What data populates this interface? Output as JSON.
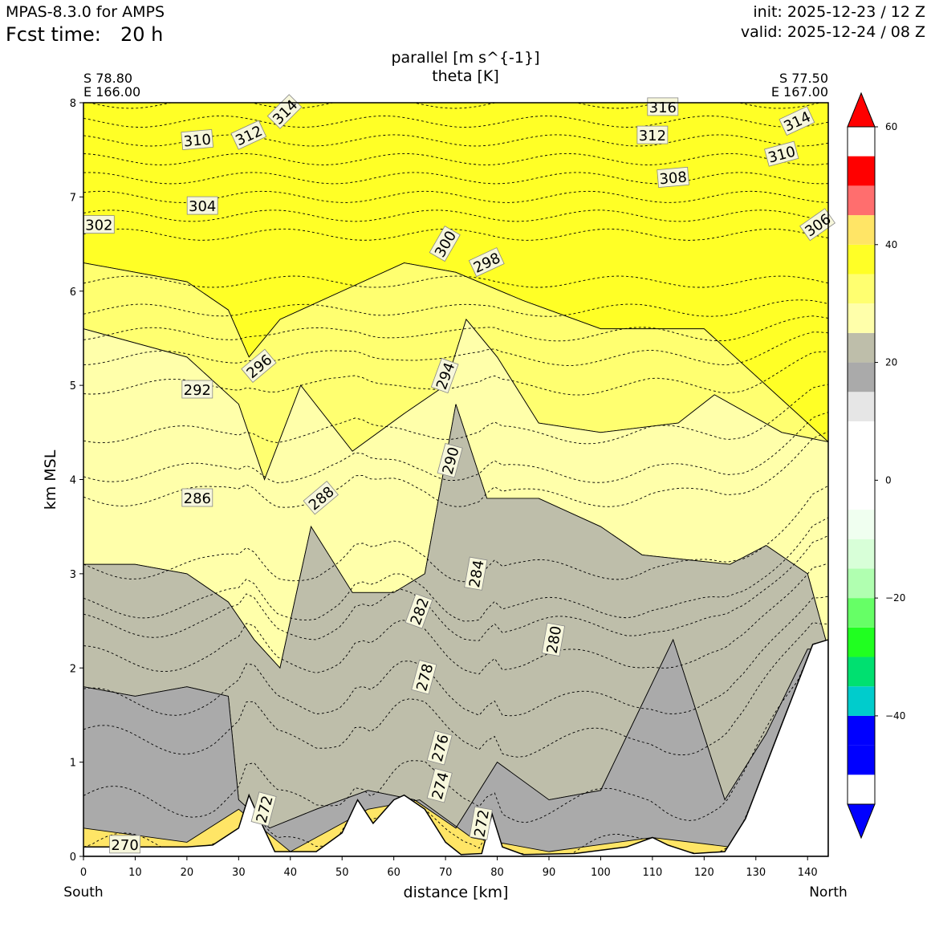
{
  "header": {
    "model": "MPAS-8.3.0 for AMPS",
    "fcst_label": "Fcst time:",
    "fcst_value": "20 h",
    "init": "init: 2025-12-23 / 12 Z",
    "valid": "valid: 2025-12-24 / 08 Z"
  },
  "chart_data": {
    "type": "contour",
    "title": "parallel [m s^{-1}]",
    "subtitle": "theta [K]",
    "xlabel": "distance [km]",
    "ylabel": "km MSL",
    "xlim": [
      0,
      144
    ],
    "ylim": [
      0,
      8
    ],
    "xticks": [
      0,
      10,
      20,
      30,
      40,
      50,
      60,
      70,
      80,
      90,
      100,
      110,
      120,
      130,
      140
    ],
    "yticks": [
      0,
      1,
      2,
      3,
      4,
      5,
      6,
      7,
      8
    ],
    "start_point": {
      "lat": "S 78.80",
      "lon": "E 166.00",
      "direction": "South"
    },
    "end_point": {
      "lat": "S 77.50",
      "lon": "E 167.00",
      "direction": "North"
    },
    "colorbar": {
      "levels": [
        -55,
        -50,
        -45,
        -40,
        -35,
        -30,
        -25,
        -20,
        -15,
        -10,
        -5,
        0,
        5,
        10,
        15,
        20,
        25,
        30,
        35,
        40,
        45,
        50,
        55,
        60
      ],
      "colors": [
        "#0000ff",
        "#0000ff",
        "#00cccc",
        "#00e070",
        "#20ff20",
        "#66ff66",
        "#b0ffb0",
        "#d8ffd8",
        "#f0fff0",
        "#ffffff",
        "#ffffff",
        "#ffffff",
        "#e6e6e6",
        "#aaaaaa",
        "#bebeaa",
        "#ffffaa",
        "#ffff70",
        "#ffff26",
        "#ffe566",
        "#ff6e6e",
        "#ff0000"
      ],
      "ticks": [
        -40,
        -20,
        0,
        20,
        40,
        60
      ],
      "tick_labels": [
        "−40",
        "−20",
        "0",
        "20",
        "40",
        "60"
      ],
      "extend": "both"
    },
    "parallel_wind_fill": {
      "bands": [
        {
          "value_range": [
            30,
            35
          ],
          "color": "#ffff26",
          "boundary_top": [
            [
              0,
              8
            ],
            [
              144,
              8
            ]
          ],
          "boundary_bottom": [
            [
              0,
              6.3
            ],
            [
              20,
              6.1
            ],
            [
              28,
              5.8
            ],
            [
              32,
              5.3
            ],
            [
              38,
              5.7
            ],
            [
              50,
              6.0
            ],
            [
              62,
              6.3
            ],
            [
              72,
              6.2
            ],
            [
              85,
              5.9
            ],
            [
              100,
              5.6
            ],
            [
              120,
              5.6
            ],
            [
              140,
              4.6
            ],
            [
              144,
              4.4
            ]
          ]
        },
        {
          "value_range": [
            25,
            30
          ],
          "color": "#ffff70",
          "boundary_top": [
            [
              0,
              6.3
            ],
            [
              20,
              6.1
            ],
            [
              28,
              5.8
            ],
            [
              32,
              5.3
            ],
            [
              38,
              5.7
            ],
            [
              50,
              6.0
            ],
            [
              62,
              6.3
            ],
            [
              72,
              6.2
            ],
            [
              85,
              5.9
            ],
            [
              100,
              5.6
            ],
            [
              120,
              5.6
            ],
            [
              140,
              4.6
            ],
            [
              144,
              4.4
            ]
          ],
          "boundary_bottom": [
            [
              0,
              5.6
            ],
            [
              20,
              5.3
            ],
            [
              30,
              4.8
            ],
            [
              35,
              4.0
            ],
            [
              42,
              5.0
            ],
            [
              52,
              4.3
            ],
            [
              62,
              4.7
            ],
            [
              70,
              5.0
            ],
            [
              74,
              5.7
            ],
            [
              80,
              5.3
            ],
            [
              88,
              4.6
            ],
            [
              100,
              4.5
            ],
            [
              115,
              4.6
            ],
            [
              122,
              4.9
            ],
            [
              135,
              4.5
            ],
            [
              144,
              4.4
            ]
          ]
        },
        {
          "value_range": [
            20,
            25
          ],
          "color": "#ffffaa",
          "boundary_top": [
            [
              0,
              5.6
            ],
            [
              20,
              5.3
            ],
            [
              30,
              4.8
            ],
            [
              35,
              4.0
            ],
            [
              42,
              5.0
            ],
            [
              52,
              4.3
            ],
            [
              62,
              4.7
            ],
            [
              70,
              5.0
            ],
            [
              74,
              5.7
            ],
            [
              80,
              5.3
            ],
            [
              88,
              4.6
            ],
            [
              100,
              4.5
            ],
            [
              115,
              4.6
            ],
            [
              122,
              4.9
            ],
            [
              135,
              4.5
            ],
            [
              144,
              4.4
            ]
          ],
          "boundary_bottom": [
            [
              0,
              3.1
            ],
            [
              10,
              3.1
            ],
            [
              20,
              3.0
            ],
            [
              28,
              2.7
            ],
            [
              33,
              2.3
            ],
            [
              38,
              2.0
            ],
            [
              44,
              3.5
            ],
            [
              52,
              2.8
            ],
            [
              60,
              2.8
            ],
            [
              66,
              3.0
            ],
            [
              72,
              4.8
            ],
            [
              78,
              3.8
            ],
            [
              88,
              3.8
            ],
            [
              100,
              3.5
            ],
            [
              108,
              3.2
            ],
            [
              125,
              3.1
            ],
            [
              132,
              3.3
            ],
            [
              140,
              3.0
            ],
            [
              144,
              2.2
            ]
          ]
        },
        {
          "value_range": [
            15,
            20
          ],
          "color": "#bebeaa",
          "boundary_top": [
            [
              0,
              3.1
            ],
            [
              10,
              3.1
            ],
            [
              20,
              3.0
            ],
            [
              28,
              2.7
            ],
            [
              33,
              2.3
            ],
            [
              38,
              2.0
            ],
            [
              44,
              3.5
            ],
            [
              52,
              2.8
            ],
            [
              60,
              2.8
            ],
            [
              66,
              3.0
            ],
            [
              72,
              4.8
            ],
            [
              78,
              3.8
            ],
            [
              88,
              3.8
            ],
            [
              100,
              3.5
            ],
            [
              108,
              3.2
            ],
            [
              125,
              3.1
            ],
            [
              132,
              3.3
            ],
            [
              140,
              3.0
            ],
            [
              144,
              2.2
            ]
          ],
          "boundary_bottom": [
            [
              0,
              1.8
            ],
            [
              10,
              1.7
            ],
            [
              20,
              1.8
            ],
            [
              28,
              1.7
            ],
            [
              30,
              0.6
            ],
            [
              36,
              0.3
            ],
            [
              45,
              0.5
            ],
            [
              55,
              0.7
            ],
            [
              64,
              0.6
            ],
            [
              72,
              0.3
            ],
            [
              80,
              1.0
            ],
            [
              90,
              0.6
            ],
            [
              100,
              0.7
            ],
            [
              114,
              2.3
            ],
            [
              124,
              0.6
            ],
            [
              132,
              1.3
            ],
            [
              140,
              2.2
            ],
            [
              144,
              2.2
            ]
          ]
        },
        {
          "value_range": [
            10,
            15
          ],
          "color": "#aaaaaa",
          "boundary_top": [
            [
              0,
              1.8
            ],
            [
              10,
              1.7
            ],
            [
              20,
              1.8
            ],
            [
              28,
              1.7
            ],
            [
              30,
              0.6
            ],
            [
              36,
              0.3
            ],
            [
              45,
              0.5
            ],
            [
              55,
              0.7
            ],
            [
              64,
              0.6
            ],
            [
              72,
              0.3
            ],
            [
              80,
              1.0
            ],
            [
              90,
              0.6
            ],
            [
              100,
              0.7
            ],
            [
              114,
              2.3
            ],
            [
              124,
              0.6
            ],
            [
              132,
              1.3
            ],
            [
              140,
              2.2
            ],
            [
              144,
              2.2
            ]
          ],
          "boundary_bottom": [
            [
              0,
              0.3
            ],
            [
              20,
              0.15
            ],
            [
              30,
              0.5
            ],
            [
              40,
              0.05
            ],
            [
              55,
              0.5
            ],
            [
              65,
              0.6
            ],
            [
              75,
              0.2
            ],
            [
              90,
              0.05
            ],
            [
              110,
              0.2
            ],
            [
              125,
              0.1
            ],
            [
              144,
              0.1
            ]
          ]
        }
      ]
    },
    "theta_contours_K": {
      "levels": [
        270,
        272,
        274,
        276,
        278,
        280,
        282,
        284,
        286,
        288,
        290,
        292,
        294,
        296,
        298,
        300,
        302,
        304,
        306,
        308,
        310,
        312,
        314,
        316
      ],
      "base_height_km": [
        0.15,
        0.65,
        1.3,
        1.7,
        2.15,
        2.5,
        2.7,
        3.1,
        3.85,
        4.1,
        4.5,
        5.0,
        5.3,
        5.55,
        5.8,
        6.1,
        6.6,
        6.8,
        7.0,
        7.2,
        7.4,
        7.6,
        7.8,
        8.0
      ],
      "labels": [
        {
          "text": "270",
          "x": 8,
          "y": 0.12,
          "angle": 0
        },
        {
          "text": "272",
          "x": 35,
          "y": 0.5,
          "angle": -75
        },
        {
          "text": "272",
          "x": 77,
          "y": 0.35,
          "angle": -80
        },
        {
          "text": "274",
          "x": 69,
          "y": 0.75,
          "angle": -75
        },
        {
          "text": "276",
          "x": 69,
          "y": 1.15,
          "angle": -75
        },
        {
          "text": "278",
          "x": 66,
          "y": 1.9,
          "angle": -75
        },
        {
          "text": "280",
          "x": 91,
          "y": 2.3,
          "angle": -80
        },
        {
          "text": "282",
          "x": 65,
          "y": 2.6,
          "angle": -70
        },
        {
          "text": "284",
          "x": 76,
          "y": 3.0,
          "angle": -80
        },
        {
          "text": "286",
          "x": 22,
          "y": 3.8,
          "angle": 0
        },
        {
          "text": "288",
          "x": 46,
          "y": 3.8,
          "angle": -40
        },
        {
          "text": "290",
          "x": 71,
          "y": 4.2,
          "angle": -75
        },
        {
          "text": "292",
          "x": 22,
          "y": 4.95,
          "angle": 0
        },
        {
          "text": "294",
          "x": 70,
          "y": 5.1,
          "angle": -70
        },
        {
          "text": "296",
          "x": 34,
          "y": 5.2,
          "angle": -40
        },
        {
          "text": "298",
          "x": 78,
          "y": 6.3,
          "angle": -25
        },
        {
          "text": "300",
          "x": 70,
          "y": 6.5,
          "angle": -60
        },
        {
          "text": "302",
          "x": 3,
          "y": 6.7,
          "angle": 0
        },
        {
          "text": "304",
          "x": 23,
          "y": 6.9,
          "angle": 0
        },
        {
          "text": "306",
          "x": 142,
          "y": 6.7,
          "angle": -35
        },
        {
          "text": "308",
          "x": 114,
          "y": 7.2,
          "angle": -5
        },
        {
          "text": "310",
          "x": 22,
          "y": 7.6,
          "angle": -5
        },
        {
          "text": "310",
          "x": 135,
          "y": 7.45,
          "angle": -15
        },
        {
          "text": "312",
          "x": 32,
          "y": 7.65,
          "angle": -25
        },
        {
          "text": "312",
          "x": 110,
          "y": 7.65,
          "angle": 0
        },
        {
          "text": "314",
          "x": 39,
          "y": 7.9,
          "angle": -45
        },
        {
          "text": "314",
          "x": 138,
          "y": 7.8,
          "angle": -25
        },
        {
          "text": "316",
          "x": 112,
          "y": 7.95,
          "angle": 0
        }
      ]
    },
    "terrain_km": [
      [
        0,
        0.1
      ],
      [
        20,
        0.1
      ],
      [
        25,
        0.12
      ],
      [
        30,
        0.3
      ],
      [
        32,
        0.65
      ],
      [
        34,
        0.4
      ],
      [
        37,
        0.05
      ],
      [
        45,
        0.05
      ],
      [
        50,
        0.25
      ],
      [
        53,
        0.6
      ],
      [
        56,
        0.35
      ],
      [
        60,
        0.6
      ],
      [
        62,
        0.65
      ],
      [
        66,
        0.5
      ],
      [
        70,
        0.15
      ],
      [
        73,
        0.02
      ],
      [
        77,
        0.03
      ],
      [
        79,
        0.45
      ],
      [
        81,
        0.1
      ],
      [
        85,
        0.02
      ],
      [
        95,
        0.03
      ],
      [
        105,
        0.1
      ],
      [
        110,
        0.2
      ],
      [
        113,
        0.12
      ],
      [
        118,
        0.03
      ],
      [
        124,
        0.05
      ],
      [
        128,
        0.4
      ],
      [
        135,
        1.4
      ],
      [
        141,
        2.25
      ],
      [
        144,
        2.3
      ]
    ]
  }
}
